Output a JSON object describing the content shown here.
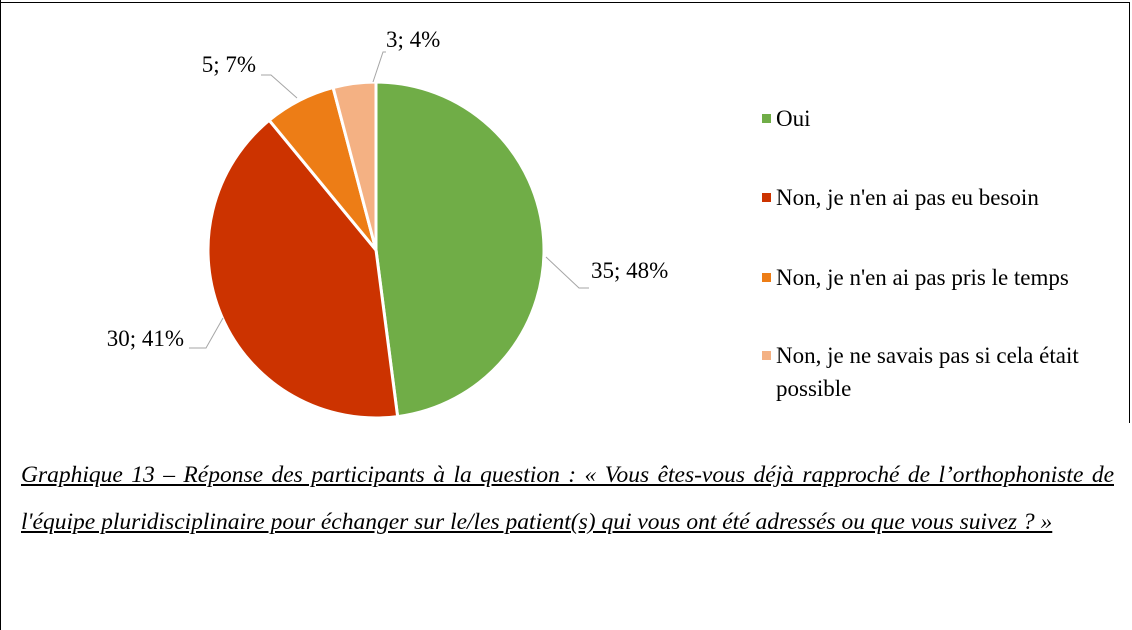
{
  "chart_data": {
    "type": "pie",
    "categories": [
      "Oui",
      "Non, je n'en ai pas eu besoin",
      "Non, je n'en ai pas pris le temps",
      "Non, je ne savais pas si cela était possible"
    ],
    "values": [
      35,
      30,
      5,
      3
    ],
    "value_labels": [
      "35; 48%",
      "30; 41%",
      "5; 7%",
      "3; 4%"
    ],
    "colors": [
      "#70ad47",
      "#cc3300",
      "#ed7d16",
      "#f4b183"
    ],
    "legend": "right",
    "caption": "Graphique 13 – Réponse des participants à la question : « Vous êtes-vous déjà rapproché de l’orthophoniste de l'équipe pluridisciplinaire pour échanger sur le/les patient(s) qui vous ont été adressés ou que vous suivez ? »"
  }
}
